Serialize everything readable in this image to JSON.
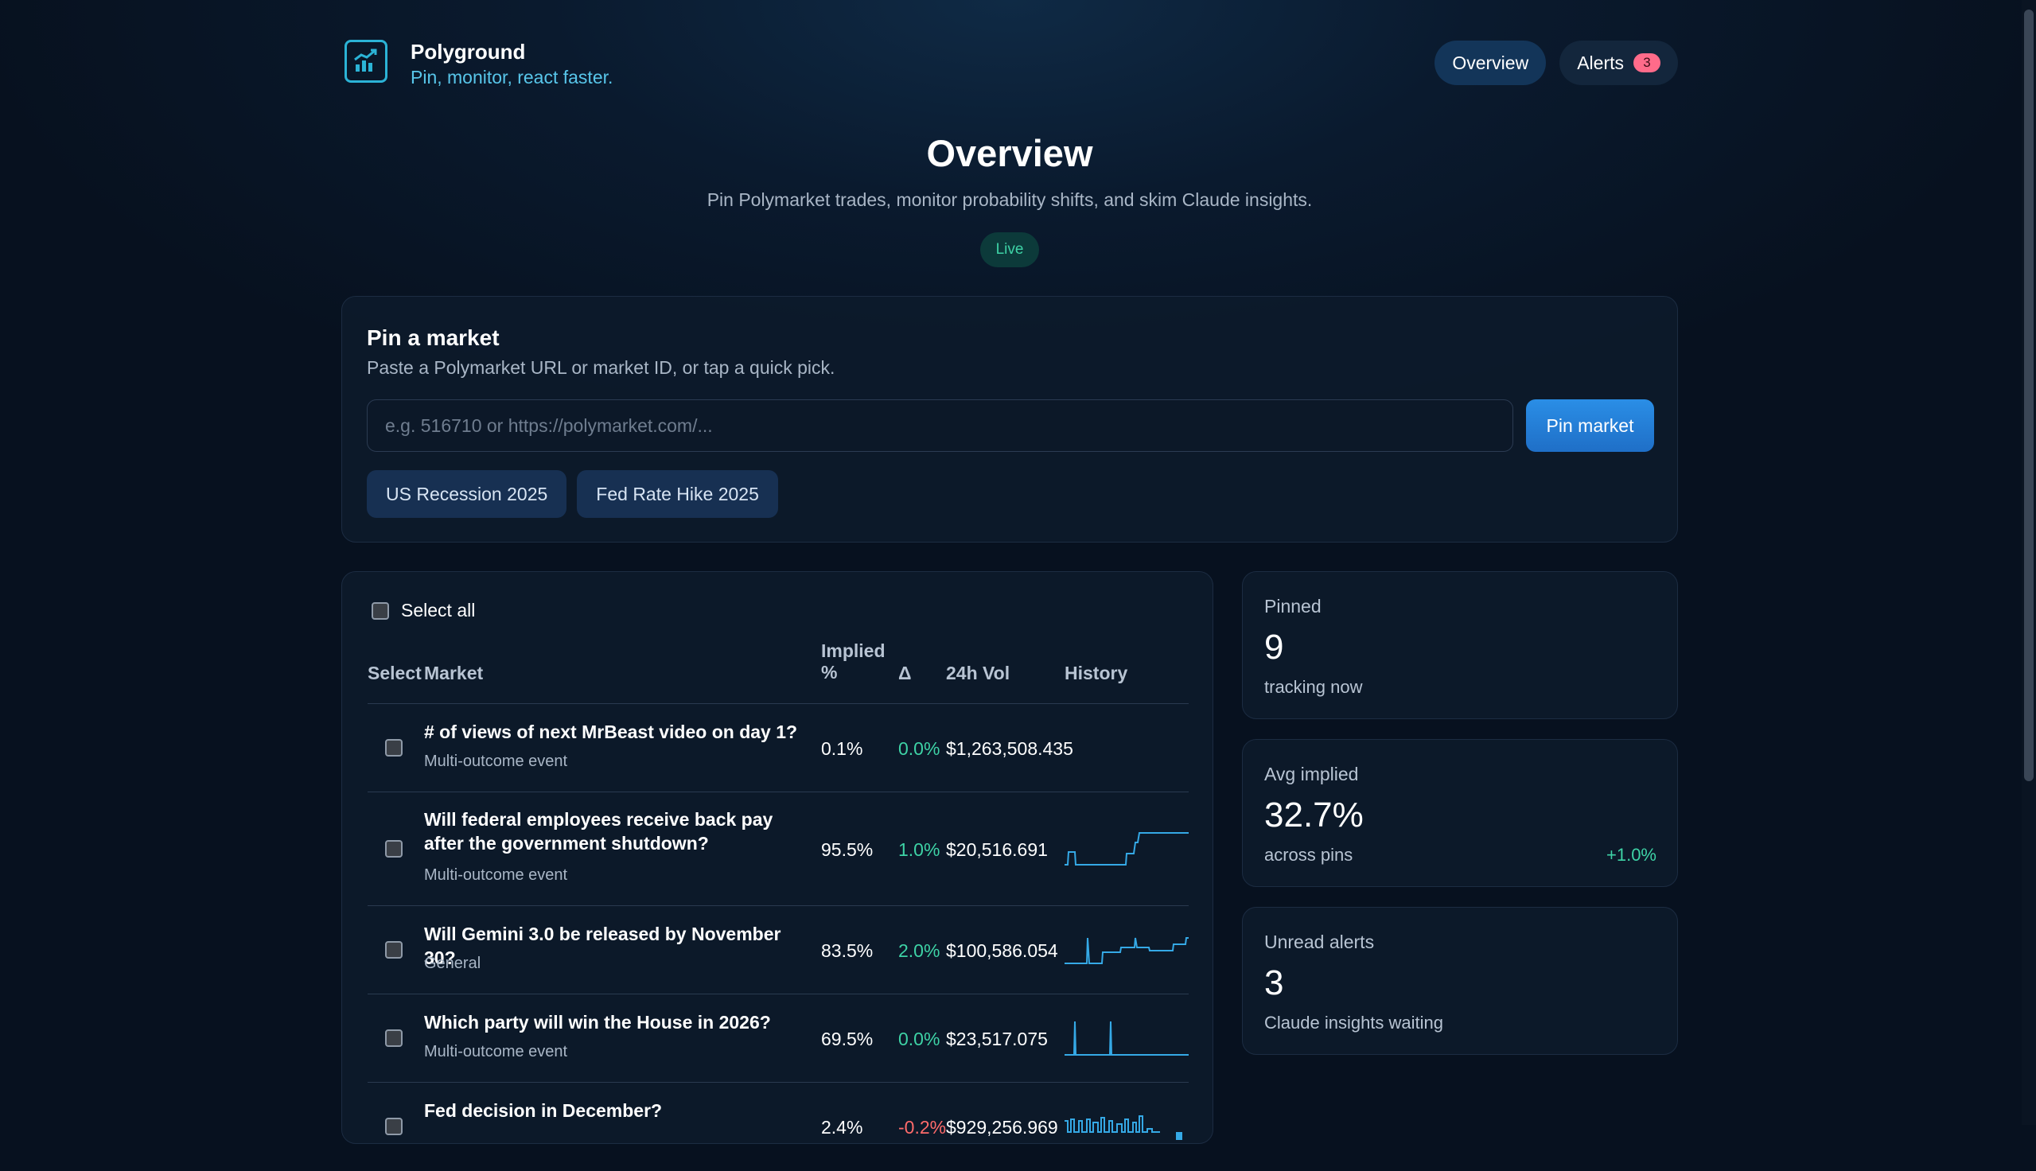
{
  "brand": {
    "name": "Polyground",
    "tagline": "Pin, monitor, react faster.",
    "icon": "chart-logo-icon",
    "accent": "#2bb3d6"
  },
  "nav": {
    "overview_label": "Overview",
    "alerts_label": "Alerts",
    "alerts_count": "3"
  },
  "hero": {
    "title": "Overview",
    "subtitle": "Pin Polymarket trades, monitor probability shifts, and skim Claude insights.",
    "status": "Live"
  },
  "pin": {
    "title": "Pin a market",
    "description": "Paste a Polymarket URL or market ID, or tap a quick pick.",
    "input_placeholder": "e.g. 516710 or https://polymarket.com/...",
    "input_value": "",
    "button_label": "Pin market",
    "quick_picks": [
      "US Recession 2025",
      "Fed Rate Hike 2025"
    ]
  },
  "table": {
    "select_all_label": "Select all",
    "headers": {
      "select": "Select",
      "market": "Market",
      "implied": "Implied %",
      "delta": "Δ",
      "volume": "24h Vol",
      "history": "History"
    },
    "rows": [
      {
        "title": "# of views of next MrBeast video on day 1?",
        "category": "Multi-outcome event",
        "implied": "0.1%",
        "delta": "0.0%",
        "volume": "$1,263,508.435",
        "trend": "flat"
      },
      {
        "title": "Will federal employees receive back pay after the government shutdown?",
        "category": "Multi-outcome event",
        "implied": "95.5%",
        "delta": "1.0%",
        "volume": "$20,516.691",
        "trend": "up"
      },
      {
        "title": "Will Gemini 3.0 be released by November 30?",
        "category": "General",
        "implied": "83.5%",
        "delta": "2.0%",
        "volume": "$100,586.054",
        "trend": "up"
      },
      {
        "title": "Which party will win the House in 2026?",
        "category": "Multi-outcome event",
        "implied": "69.5%",
        "delta": "0.0%",
        "volume": "$23,517.075",
        "trend": "flat"
      },
      {
        "title": "Fed decision in December?",
        "category": "",
        "implied": "2.4%",
        "delta": "-0.2%",
        "volume": "$929,256.969",
        "trend": "volatile"
      }
    ],
    "positive_color": "#3ed3a6",
    "negative_color": "#ff6b6b",
    "spark_color": "#35a9e6"
  },
  "stats": {
    "pinned": {
      "label": "Pinned",
      "value": "9",
      "note": "tracking now"
    },
    "avg_implied": {
      "label": "Avg implied",
      "value": "32.7%",
      "note": "across pins",
      "delta": "+1.0%"
    },
    "unread": {
      "label": "Unread alerts",
      "value": "3",
      "note": "Claude insights waiting"
    }
  }
}
